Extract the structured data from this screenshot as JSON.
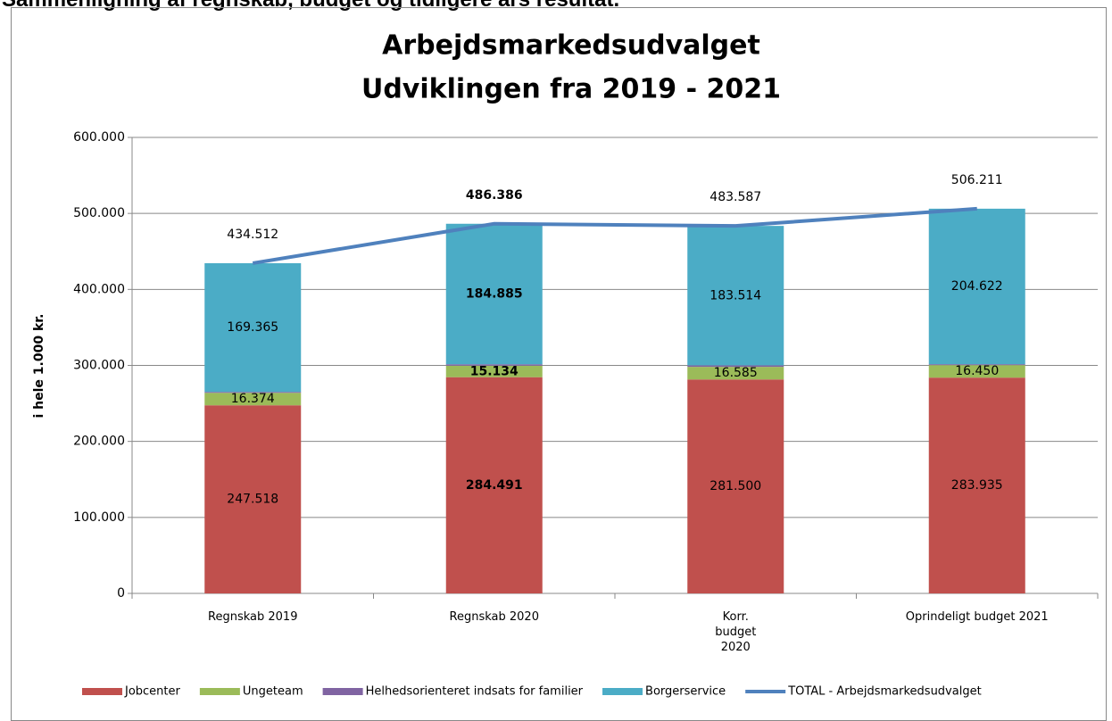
{
  "heading": "Sammenligning af regnskab, budget og tidligere års resultat.",
  "chart_data": {
    "type": "bar",
    "stacked": true,
    "title": "Arbejdsmarkedsudvalget",
    "subtitle": "Udviklingen fra 2019 - 2021",
    "y_label": "i hele 1.000 kr.",
    "categories": [
      "Regnskab 2019",
      "Regnskab 2020",
      "Korr.\nbudget\n2020",
      "Oprindeligt budget 2021"
    ],
    "ylim": [
      0,
      600000
    ],
    "yticks": [
      0,
      {
        "value": 100000,
        "label": "100.000"
      },
      {
        "value": 200000,
        "label": "200.000"
      },
      {
        "value": 300000,
        "label": "300.000"
      },
      {
        "value": 400000,
        "label": "400.000"
      },
      {
        "value": 500000,
        "label": "500.000"
      },
      {
        "value": 600000,
        "label": "600.000"
      }
    ],
    "grid": true,
    "legend": "bottom",
    "series": [
      {
        "name": "Jobcenter",
        "color": "#c0504d",
        "values": [
          247518,
          284491,
          281500,
          283935
        ],
        "value_labels": [
          "247.518",
          "284.491",
          "281.500",
          "283.935"
        ]
      },
      {
        "name": "Ungeteam",
        "color": "#9bbb59",
        "values": [
          16374,
          15134,
          16585,
          16450
        ],
        "value_labels": [
          "16.374",
          "15.134",
          "16.585",
          "16.450"
        ]
      },
      {
        "name": "Helhedsorienteret indsats for familier",
        "color": "#8064a2",
        "values": [
          1255,
          1876,
          1988,
          1204
        ]
      },
      {
        "name": "Borgerservice",
        "color": "#4bacc6",
        "values": [
          169365,
          184885,
          183514,
          204622
        ],
        "value_labels": [
          "169.365",
          "184.885",
          "183.514",
          "204.622"
        ]
      },
      {
        "name": "TOTAL - Arbejdsmarkedsudvalget",
        "type": "line",
        "color": "#4f81bd",
        "values": [
          434512,
          486386,
          483587,
          506211
        ],
        "value_labels": [
          "434.512",
          "486.386",
          "483.587",
          "506.211"
        ]
      }
    ]
  }
}
